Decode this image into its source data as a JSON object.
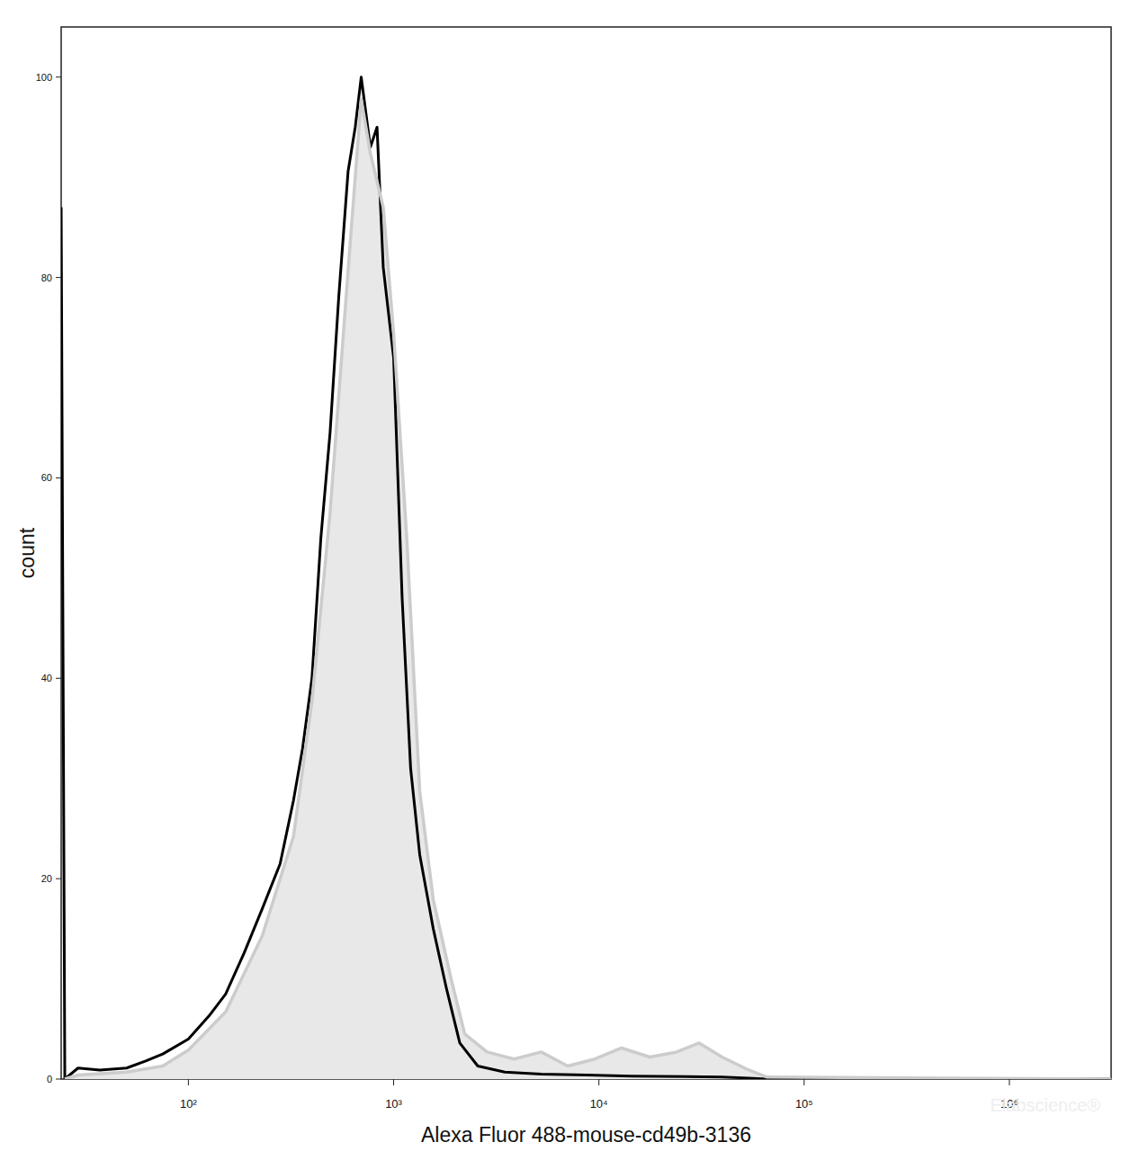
{
  "chart_data": {
    "type": "line",
    "xlabel": "Alexa Fluor 488-mouse-cd49b-3136",
    "ylabel": "count",
    "log": "x",
    "grid": false,
    "xlim": [
      24,
      3130000
    ],
    "ylim": [
      0,
      105
    ],
    "xticks": [
      {
        "value": 100,
        "label": "10²"
      },
      {
        "value": 1000,
        "label": "10³"
      },
      {
        "value": 10000,
        "label": "10⁴"
      },
      {
        "value": 100000,
        "label": "10⁵"
      },
      {
        "value": 1000000,
        "label": "10⁶"
      }
    ],
    "yticks": [
      0,
      20,
      40,
      60,
      80,
      100
    ],
    "annotations": [
      "Elabscience®"
    ],
    "series": [
      {
        "type": "line",
        "color": "#000000",
        "x": [
          24,
          25,
          29,
          37,
          50,
          62,
          75,
          100,
          126,
          152,
          187,
          229,
          280,
          325,
          360,
          400,
          442,
          490,
          540,
          600,
          650,
          695,
          770,
          830,
          890,
          1000,
          1100,
          1210,
          1340,
          1560,
          1810,
          2100,
          2570,
          3480,
          5240,
          8700,
          14400,
          39800,
          53700,
          66000,
          3130000
        ],
        "values": [
          87,
          0,
          1.1,
          0.9,
          1.1,
          1.8,
          2.5,
          4.0,
          6.3,
          8.5,
          12.6,
          17,
          21.5,
          27.8,
          33,
          40,
          54,
          64.5,
          78,
          90.6,
          95,
          100,
          93,
          95,
          81,
          72,
          48,
          31,
          22.4,
          15,
          9,
          3.6,
          1.3,
          0.7,
          0.5,
          0.4,
          0.3,
          0.2,
          0.1,
          0,
          0
        ]
      },
      {
        "type": "area",
        "color": "#cccccc",
        "x": [
          25,
          29,
          50,
          75,
          100,
          152,
          229,
          325,
          400,
          490,
          600,
          695,
          770,
          890,
          1000,
          1160,
          1340,
          1560,
          1910,
          2220,
          2850,
          3860,
          5240,
          7050,
          9560,
          12900,
          17700,
          23900,
          30800,
          39800,
          53700,
          66000,
          3130000
        ],
        "values": [
          0,
          0.4,
          0.7,
          1.3,
          2.9,
          6.7,
          14.3,
          24.2,
          37.7,
          56.5,
          80.7,
          97.8,
          92.4,
          87,
          74.4,
          53.8,
          28.7,
          17.9,
          9.9,
          4.5,
          2.7,
          2.0,
          2.7,
          1.3,
          2.0,
          3.1,
          2.2,
          2.7,
          3.6,
          2.2,
          0.9,
          0.2,
          0
        ]
      }
    ]
  }
}
